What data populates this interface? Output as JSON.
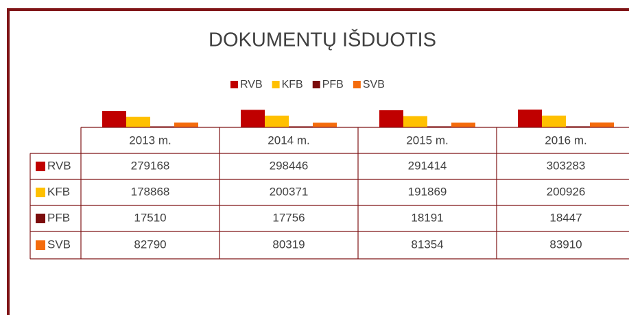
{
  "chart_data": {
    "type": "bar",
    "title": "DOKUMENTŲ IŠDUOTIS",
    "categories": [
      "2013 m.",
      "2014 m.",
      "2015 m.",
      "2016 m."
    ],
    "series": [
      {
        "name": "RVB",
        "color": "#c00000",
        "values": [
          279168,
          298446,
          291414,
          303283
        ]
      },
      {
        "name": "KFB",
        "color": "#ffc000",
        "values": [
          178868,
          200371,
          191869,
          200926
        ]
      },
      {
        "name": "PFB",
        "color": "#7b0c0c",
        "values": [
          17510,
          17756,
          18191,
          18447
        ]
      },
      {
        "name": "SVB",
        "color": "#f46b0c",
        "values": [
          82790,
          80319,
          81354,
          83910
        ]
      }
    ],
    "ylim": [
      0,
      420000
    ]
  }
}
